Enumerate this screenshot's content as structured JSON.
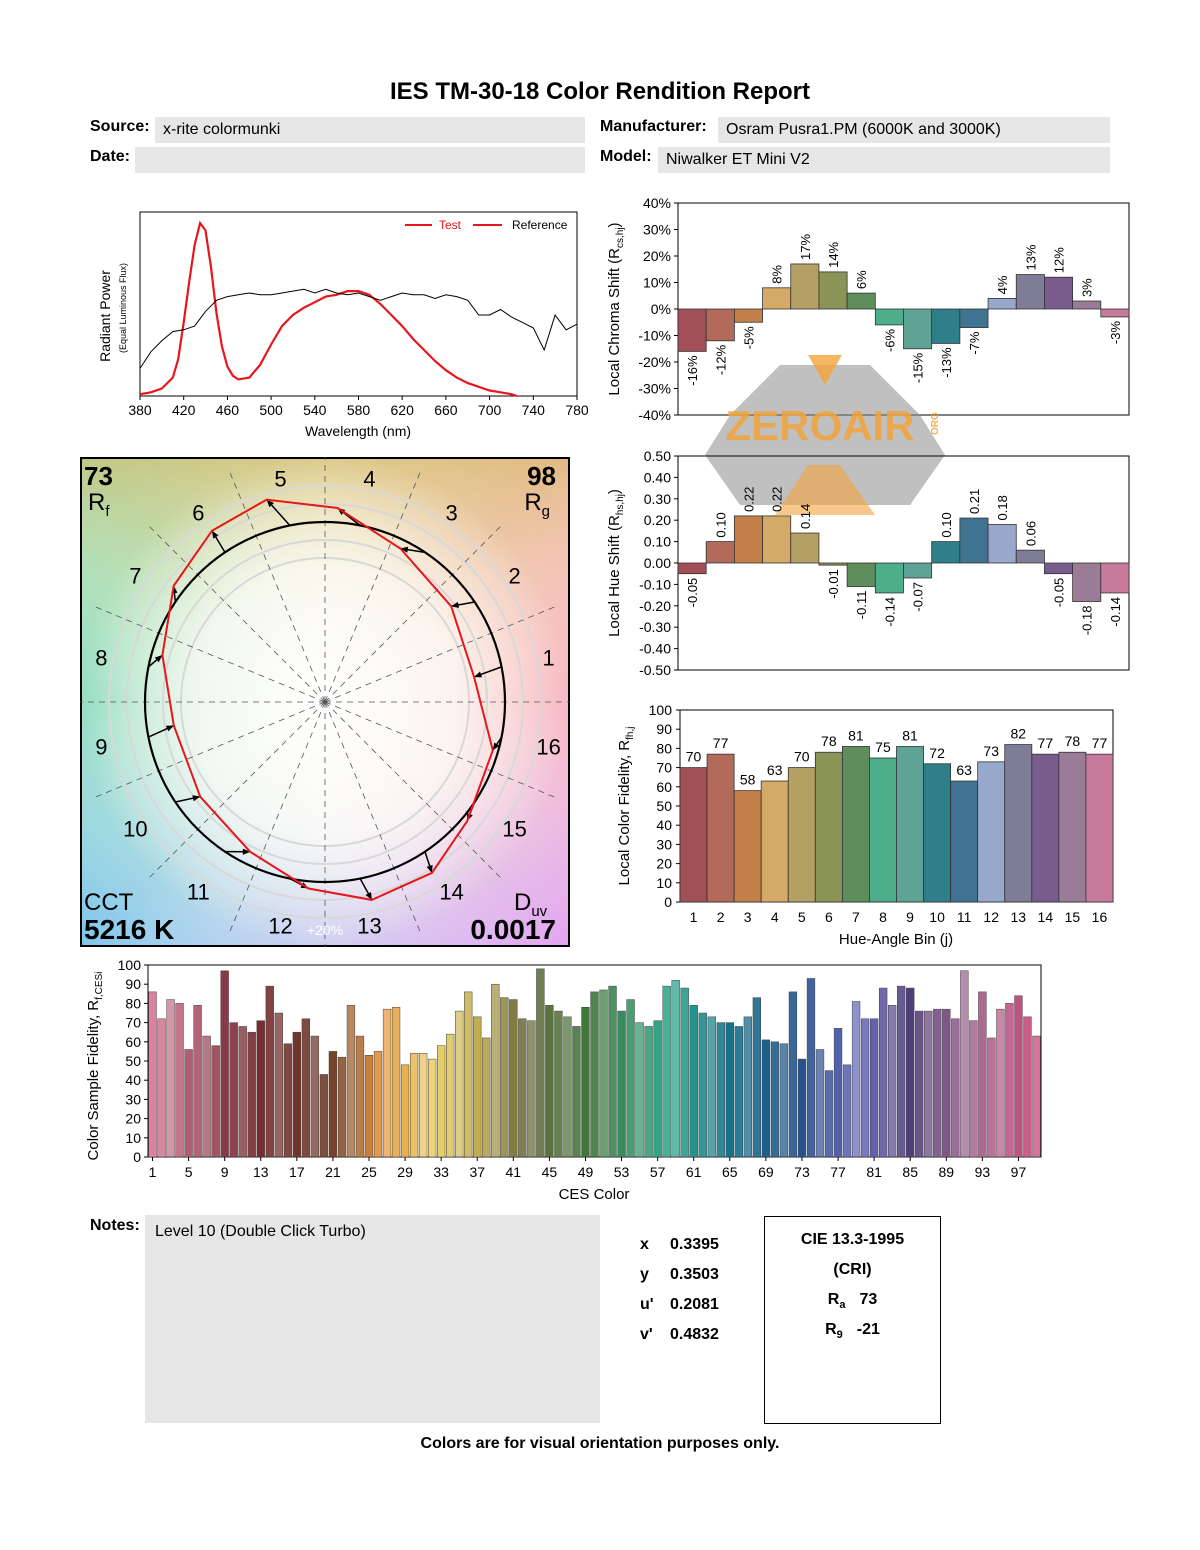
{
  "report": {
    "title": "IES TM-30-18 Color Rendition Report",
    "source_label": "Source:",
    "source": "x-rite colormunki",
    "date_label": "Date:",
    "date": "",
    "manufacturer_label": "Manufacturer:",
    "manufacturer": "Osram Pusra1.PM (6000K and 3000K)",
    "model_label": "Model:",
    "model": "Niwalker ET Mini V2",
    "notes_label": "Notes:",
    "notes": "Level 10 (Double Click Turbo)",
    "footer": "Colors are for visual orientation purposes only.",
    "watermark": "ZEROAIR",
    "watermark_suffix": "ORG"
  },
  "chromaticity": [
    {
      "label": "x",
      "value": "0.3395"
    },
    {
      "label": "y",
      "value": "0.3503"
    },
    {
      "label": "u'",
      "value": "0.2081"
    },
    {
      "label": "v'",
      "value": "0.4832"
    }
  ],
  "cri": {
    "line1": "CIE 13.3-1995",
    "line2": "(CRI)",
    "ra_label": "R",
    "ra_sub": "a",
    "ra": "73",
    "r9_label": "R",
    "r9_sub": "9",
    "r9": "-21"
  },
  "colors": {
    "test_line": "#e8161b",
    "reference_line": "#000000",
    "hue_bins": [
      "#a34f58",
      "#b46a5a",
      "#c28048",
      "#d4aa66",
      "#b4a062",
      "#8a9456",
      "#5f8e5c",
      "#4dae8c",
      "#5fa397",
      "#2f7f8a",
      "#3f7391",
      "#97a8cc",
      "#7f7c98",
      "#785c8e",
      "#9b7c96",
      "#c67b9c"
    ]
  },
  "chart_data": [
    {
      "type": "line",
      "name": "spectrum",
      "ylabel": "Radiant Power",
      "ylabel2": "(Equal Luminous Flux)",
      "xlabel": "Wavelength (nm)",
      "xlim": [
        380,
        780
      ],
      "xticks": [
        380,
        420,
        460,
        500,
        540,
        580,
        620,
        660,
        700,
        740,
        780
      ],
      "legend": [
        "Test",
        "Reference"
      ],
      "legend_position": "top-right",
      "series": [
        {
          "name": "Test",
          "x": [
            380,
            390,
            400,
            410,
            415,
            420,
            425,
            430,
            435,
            440,
            445,
            450,
            455,
            460,
            465,
            470,
            480,
            490,
            500,
            510,
            520,
            530,
            540,
            550,
            560,
            570,
            580,
            590,
            600,
            610,
            620,
            630,
            640,
            650,
            660,
            670,
            680,
            690,
            700,
            710,
            720,
            725
          ],
          "y": [
            0.01,
            0.02,
            0.04,
            0.1,
            0.2,
            0.4,
            0.62,
            0.82,
            0.94,
            0.9,
            0.7,
            0.45,
            0.27,
            0.16,
            0.11,
            0.09,
            0.1,
            0.17,
            0.28,
            0.38,
            0.44,
            0.48,
            0.51,
            0.54,
            0.55,
            0.57,
            0.57,
            0.55,
            0.5,
            0.44,
            0.38,
            0.31,
            0.25,
            0.19,
            0.14,
            0.1,
            0.07,
            0.05,
            0.03,
            0.02,
            0.01,
            0.0
          ]
        },
        {
          "name": "Reference",
          "x": [
            380,
            390,
            400,
            410,
            420,
            430,
            440,
            450,
            460,
            470,
            480,
            490,
            500,
            510,
            520,
            530,
            540,
            550,
            560,
            570,
            580,
            590,
            600,
            610,
            620,
            630,
            640,
            650,
            660,
            670,
            680,
            690,
            700,
            710,
            720,
            730,
            740,
            750,
            760,
            770,
            780
          ],
          "y": [
            0.15,
            0.24,
            0.3,
            0.35,
            0.36,
            0.38,
            0.46,
            0.52,
            0.54,
            0.55,
            0.56,
            0.55,
            0.55,
            0.56,
            0.57,
            0.58,
            0.56,
            0.58,
            0.56,
            0.55,
            0.56,
            0.54,
            0.52,
            0.54,
            0.56,
            0.55,
            0.55,
            0.53,
            0.55,
            0.54,
            0.52,
            0.44,
            0.44,
            0.47,
            0.43,
            0.4,
            0.37,
            0.25,
            0.44,
            0.36,
            0.39
          ]
        }
      ]
    },
    {
      "type": "bar",
      "name": "local_chroma_shift",
      "ylabel": "Local Chroma Shift (R",
      "ylabel_sub": "cs,hj",
      "ylim": [
        -40,
        40
      ],
      "yticks": [
        40,
        30,
        20,
        10,
        0,
        -10,
        -20,
        -30,
        -40
      ],
      "categories": [
        1,
        2,
        3,
        4,
        5,
        6,
        7,
        8,
        9,
        10,
        11,
        12,
        13,
        14,
        15,
        16
      ],
      "values": [
        -16,
        -12,
        -5,
        8,
        17,
        14,
        6,
        -6,
        -15,
        -13,
        -7,
        4,
        13,
        12,
        3,
        -3
      ],
      "labels": [
        "-16%",
        "-12%",
        "-5%",
        "8%",
        "17%",
        "14%",
        "6%",
        "-6%",
        "-15%",
        "-13%",
        "-7%",
        "4%",
        "13%",
        "12%",
        "3%",
        "-3%"
      ]
    },
    {
      "type": "bar",
      "name": "local_hue_shift",
      "ylabel": "Local Hue Shift (R",
      "ylabel_sub": "hs,hj",
      "ylim": [
        -0.5,
        0.5
      ],
      "yticks": [
        "0.50",
        "0.40",
        "0.30",
        "0.20",
        "0.10",
        "0.00",
        "-0.10",
        "-0.20",
        "-0.30",
        "-0.40",
        "-0.50"
      ],
      "categories": [
        1,
        2,
        3,
        4,
        5,
        6,
        7,
        8,
        9,
        10,
        11,
        12,
        13,
        14,
        15,
        16
      ],
      "values": [
        -0.05,
        0.1,
        0.22,
        0.22,
        0.14,
        -0.01,
        -0.11,
        -0.14,
        -0.07,
        0.1,
        0.21,
        0.18,
        0.06,
        -0.05,
        -0.18,
        -0.14
      ],
      "labels": [
        "-0.05",
        "0.10",
        "0.22",
        "0.22",
        "0.14",
        "-0.01",
        "-0.11",
        "-0.14",
        "-0.07",
        "0.10",
        "0.21",
        "0.18",
        "0.06",
        "-0.05",
        "-0.18",
        "-0.14"
      ]
    },
    {
      "type": "bar",
      "name": "local_color_fidelity",
      "ylabel": "Local Color Fidelity, R",
      "ylabel_sub": "fh,j",
      "xlabel": "Hue-Angle Bin (j)",
      "ylim": [
        0,
        100
      ],
      "yticks": [
        100,
        90,
        80,
        70,
        60,
        50,
        40,
        30,
        20,
        10,
        0
      ],
      "categories": [
        1,
        2,
        3,
        4,
        5,
        6,
        7,
        8,
        9,
        10,
        11,
        12,
        13,
        14,
        15,
        16
      ],
      "values": [
        70,
        77,
        58,
        63,
        70,
        78,
        81,
        75,
        81,
        72,
        63,
        73,
        82,
        77,
        78,
        77
      ]
    },
    {
      "type": "scatter",
      "name": "color_vector_graphic",
      "rf_value": "73",
      "rf_label": "R",
      "rf_sub": "f",
      "rg_value": "98",
      "rg_label": "R",
      "rg_sub": "g",
      "cct_label": "CCT",
      "cct": "5216 K",
      "duv_label": "D",
      "duv_sub": "uv",
      "duv": "0.0017",
      "ring_label": "+20%",
      "bin_labels": [
        "1",
        "2",
        "3",
        "4",
        "5",
        "6",
        "7",
        "8",
        "9",
        "10",
        "11",
        "12",
        "13",
        "14",
        "15",
        "16"
      ],
      "chroma_ratio": [
        0.84,
        0.88,
        0.95,
        1.08,
        1.17,
        1.14,
        1.06,
        0.94,
        0.85,
        0.87,
        0.93,
        1.04,
        1.13,
        1.12,
        1.03,
        0.97
      ],
      "hue_shift": [
        -0.05,
        0.1,
        0.22,
        0.22,
        0.14,
        -0.01,
        -0.11,
        -0.14,
        -0.07,
        0.1,
        0.21,
        0.18,
        0.06,
        -0.05,
        -0.18,
        -0.14
      ]
    },
    {
      "type": "bar",
      "name": "ces_fidelity",
      "ylabel": "Color Sample Fidelity, R",
      "ylabel_sub": "f,CESi",
      "xlabel": "CES Color",
      "ylim": [
        0,
        100
      ],
      "yticks": [
        100,
        90,
        80,
        70,
        60,
        50,
        40,
        30,
        20,
        10,
        0
      ],
      "xticks": [
        1,
        5,
        9,
        13,
        17,
        21,
        25,
        29,
        33,
        37,
        41,
        45,
        49,
        53,
        57,
        61,
        65,
        69,
        73,
        77,
        81,
        85,
        89,
        93,
        97
      ],
      "values": [
        86,
        72,
        82,
        80,
        56,
        79,
        63,
        58,
        97,
        70,
        68,
        65,
        71,
        89,
        75,
        59,
        65,
        72,
        63,
        43,
        55,
        52,
        79,
        63,
        53,
        55,
        77,
        78,
        48,
        54,
        54,
        51,
        58,
        64,
        76,
        86,
        73,
        62,
        90,
        83,
        82,
        72,
        71,
        98,
        79,
        76,
        73,
        68,
        78,
        86,
        87,
        89,
        76,
        82,
        70,
        68,
        71,
        89,
        92,
        88,
        79,
        75,
        73,
        70,
        70,
        68,
        73,
        83,
        61,
        60,
        59,
        86,
        51,
        93,
        56,
        45,
        67,
        48,
        81,
        72,
        72,
        88,
        79,
        89,
        88,
        76,
        76,
        77,
        77,
        72,
        97,
        71,
        86,
        62,
        77,
        80,
        84,
        73,
        63
      ]
    }
  ]
}
